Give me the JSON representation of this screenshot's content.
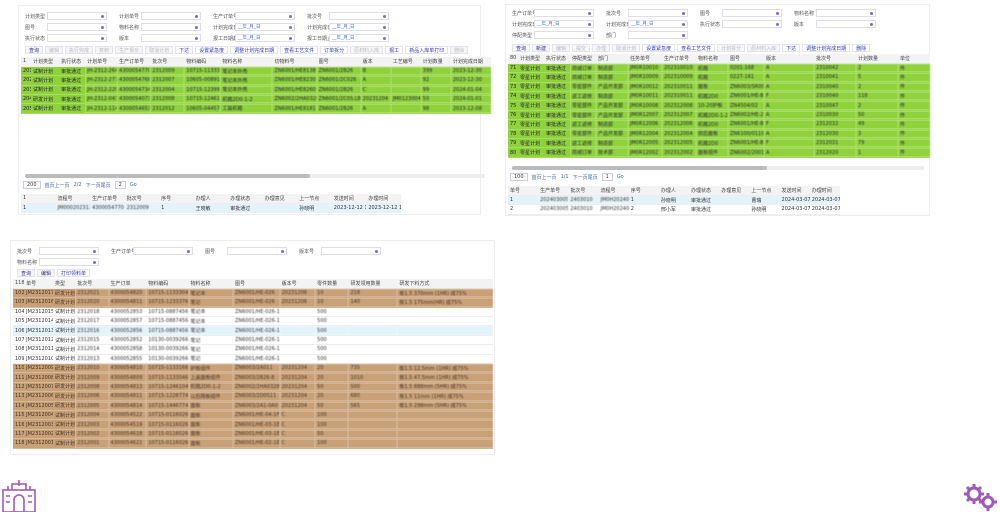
{
  "panelA": {
    "filters": [
      [
        {
          "label": "计划类型",
          "value": ""
        },
        {
          "label": "计划单号",
          "value": ""
        },
        {
          "label": "生产订单号",
          "value": ""
        },
        {
          "label": "批次号",
          "value": ""
        }
      ],
      [
        {
          "label": "图号",
          "value": ""
        },
        {
          "label": "物料名称",
          "value": ""
        },
        {
          "label": "计划完成日期",
          "value": "__年_月_日"
        },
        {
          "label": "计划完成日期",
          "value": "__年_月_日"
        }
      ],
      [
        {
          "label": "执行状态",
          "value": ""
        },
        {
          "label": "版本",
          "value": ""
        },
        {
          "label": "报工日期起",
          "value": "__年_月_日"
        },
        {
          "label": "报工日期止",
          "value": "__年_月_日"
        }
      ]
    ],
    "buttons": [
      {
        "label": "查询",
        "dis": false
      },
      {
        "label": "编辑",
        "dis": true
      },
      {
        "label": "执行完成",
        "dis": true
      },
      {
        "label": "复制",
        "dis": true
      },
      {
        "label": "生产报价",
        "dis": true
      },
      {
        "label": "取消计划",
        "dis": true
      },
      {
        "label": "下达",
        "dis": false,
        "lnk": true
      },
      {
        "label": "设置紧急度",
        "dis": false,
        "lnk": true
      },
      {
        "label": "调整计划完成日期",
        "dis": false,
        "lnk": true
      },
      {
        "label": "查看工艺文件",
        "dis": false,
        "lnk": true
      },
      {
        "label": "订单拆分",
        "dis": false,
        "lnk": true
      },
      {
        "label": "原材料入库",
        "dis": true
      },
      {
        "label": "报工",
        "dis": false,
        "lnk": true
      },
      {
        "label": "新品入库单打印",
        "dis": false,
        "lnk": true
      },
      {
        "label": "删除",
        "dis": true
      }
    ],
    "columns": [
      "1",
      "计划类型",
      "执行状态",
      "计划单号",
      "生产订单号",
      "批次号",
      "物料编码",
      "物料名称",
      "切物料号",
      "图号",
      "版本",
      "工艺编号",
      "计划数量",
      "计划完成日期"
    ],
    "rows": [
      [
        "201",
        "试制计划",
        "审批通过",
        "JH-2312-264",
        "4300054770",
        "2312009",
        "10715-1133304",
        "笔记本外壳",
        "ZN6001/HE8138",
        "ZN6001/2B26",
        "B",
        "",
        "399",
        "2023-12-30"
      ],
      [
        "202",
        "试制计划",
        "审批通过",
        "JH-2312-277",
        "4300054768",
        "2312007",
        "10605-0089166",
        "笔记本外壳",
        "ZN6001/HE8230",
        "ZN6001/2C026",
        "A",
        "",
        "92",
        "2023-12-30"
      ],
      [
        "203",
        "试制计划",
        "审批通过",
        "JH-2312-220",
        "4300054734",
        "2312004",
        "10715-1239906",
        "笔记本外壳",
        "ZN6001/HE8260",
        "ZN6001/2B26",
        "C",
        "",
        "99",
        "2024-01-04"
      ],
      [
        "204",
        "研发计划",
        "审批通过",
        "JH-2312-043",
        "4300054073",
        "2312008",
        "10715-1246104",
        "机箱2D0-1-2",
        "ZN6002/2HA0328",
        "ZN6001/2C0S.LB",
        "20231204",
        "JM0123004",
        "50",
        "2024-01-01"
      ],
      [
        "205",
        "试制计划",
        "审批通过",
        "JH-2312-114",
        "4300054653",
        "2312012",
        "10605-0445724",
        "工装机箱",
        "ZN6001/HE8181",
        "ZN6001/2B26",
        "A",
        "",
        "98",
        "2023-12-08"
      ]
    ],
    "pager": {
      "page_size": "200",
      "first_prev": "首页上一页",
      "page_info": "2/2",
      "next_last": "下一页尾页",
      "page": "2",
      "go": "Go"
    },
    "detail_columns": [
      "1",
      "流程号",
      "生产订单号",
      "批次号",
      "序号",
      "办理人",
      "办理状态",
      "办理意见",
      "上一节点",
      "发送时间",
      "办理时间"
    ],
    "detail_rows": [
      [
        "1",
        "JM0002023121202004",
        "4300054770",
        "2312009",
        "1",
        "王晓敏",
        "审批通过",
        "",
        "孙晓明",
        "2023-12-12 15:09",
        "2023-12-12 16:00"
      ]
    ]
  },
  "panelB": {
    "filters": [
      [
        {
          "label": "生产订单号",
          "value": ""
        },
        {
          "label": "批次号",
          "value": ""
        },
        {
          "label": "图号",
          "value": ""
        },
        {
          "label": "物料名称",
          "value": ""
        }
      ],
      [
        {
          "label": "计划完成日期",
          "value": "__年_月_日"
        },
        {
          "label": "计划完成日期",
          "value": "__年_月_日"
        },
        {
          "label": "执行状态",
          "value": ""
        },
        {
          "label": "版本",
          "value": ""
        }
      ],
      [
        {
          "label": "停配类型",
          "value": ""
        },
        {
          "label": "部门",
          "value": ""
        }
      ]
    ],
    "buttons": [
      {
        "label": "查询",
        "dis": false
      },
      {
        "label": "新建",
        "dis": false
      },
      {
        "label": "编辑",
        "dis": true
      },
      {
        "label": "提交",
        "dis": true
      },
      {
        "label": "办理",
        "dis": true
      },
      {
        "label": "取消计划",
        "dis": true
      },
      {
        "label": "设置紧急度",
        "dis": false,
        "lnk": true
      },
      {
        "label": "查看工艺文件",
        "dis": false,
        "lnk": true
      },
      {
        "label": "计划拆分",
        "dis": true
      },
      {
        "label": "原材料入库",
        "dis": true
      },
      {
        "label": "下达",
        "dis": false,
        "lnk": true
      },
      {
        "label": "调整计划完成日期",
        "dis": false,
        "lnk": true
      },
      {
        "label": "删除",
        "dis": false,
        "lnk": true
      }
    ],
    "columns": [
      "80",
      "计划类型",
      "执行状态",
      "停配类型",
      "部门",
      "任务单号",
      "生产订单号",
      "物料名称",
      "图号",
      "版本",
      "批次号",
      "计划数量",
      "单位"
    ],
    "rows": [
      [
        "71",
        "零星计划",
        "审批通过",
        "商城订单",
        "制造部",
        "JM0R10010",
        "202310010",
        "机箱",
        "0201-168",
        "A",
        "2310042",
        "2",
        "件"
      ],
      [
        "72",
        "零星计划",
        "审批通过",
        "商城订单",
        "制造部",
        "JM0R10009",
        "202310009",
        "机箱",
        "0227-161",
        "A",
        "2310041",
        "5",
        "件"
      ],
      [
        "73",
        "零星计划",
        "审批通过",
        "零星部件",
        "产品开发部",
        "JM0R10012",
        "202310011",
        "面板",
        "ZN6003/SR004",
        "A",
        "2310040",
        "2",
        "件"
      ],
      [
        "74",
        "零星计划",
        "审批通过",
        "返工返修",
        "制造部",
        "JM0R10011",
        "202310011",
        "机箱2D0",
        "ZN6001/HE-BLB",
        "F",
        "2310040",
        "118",
        "件"
      ],
      [
        "75",
        "零星计划",
        "审批通过",
        "零星部件",
        "产品开发部",
        "JM0R10008",
        "202312008",
        "10-20护板",
        "ZN4504/02",
        "A",
        "2310047",
        "2",
        "件"
      ],
      [
        "76",
        "零星计划",
        "审批通过",
        "零星部件",
        "产品开发部",
        "JM0R12007",
        "202312007",
        "机箱2D0-1-2",
        "ZN6002/HE-26",
        "A",
        "2310030",
        "50",
        "件"
      ],
      [
        "77",
        "零星计划",
        "审批通过",
        "返工返修",
        "制造部",
        "JM0R12006",
        "202312006",
        "机箱2D0",
        "ZN6001/HE-BLB",
        "F",
        "2312032",
        "49",
        "件"
      ],
      [
        "78",
        "零星计划",
        "审批通过",
        "零星部件",
        "产品开发部",
        "JM0R12004",
        "202312004",
        "前后面板",
        "ZN6100/01100",
        "A",
        "2312030",
        "3",
        "件"
      ],
      [
        "79",
        "零星计划",
        "审批通过",
        "返工返修",
        "制造部",
        "JM0R12005",
        "202312005",
        "机箱2D0",
        "ZN6001/HE-BLB",
        "F",
        "2312031",
        "79",
        "件"
      ],
      [
        "80",
        "零星计划",
        "审批通过",
        "商城订单",
        "技术部",
        "JM0R12002",
        "202312002",
        "面板组件",
        "ZN6002/2001",
        "A",
        "2312020",
        "1",
        "件"
      ]
    ],
    "pager": {
      "page_size": "100",
      "first_prev": "首页上一页",
      "page_info": "1/1",
      "next_last": "下一页尾页",
      "page": "1",
      "go": "Go"
    },
    "detail_columns": [
      "单号",
      "生产单号",
      "批次号",
      "流程号",
      "序号",
      "办理人",
      "办理状态",
      "办理意见",
      "上一节点",
      "发送时间",
      "办理时间"
    ],
    "detail_rows": [
      [
        "1",
        "202403005",
        "2403010",
        "JM0H2024030700002",
        "1",
        "孙晓明",
        "审批通过",
        "",
        "曹瑞",
        "2024-03-07 13:56",
        "2024-03-07 14:02"
      ],
      [
        "2",
        "202403005",
        "2403010",
        "JM0H2024030700002",
        "2",
        "邢小军",
        "审批通过",
        "",
        "孙晓明",
        "2024-03-07 14:02",
        "2024-03-07 14:03"
      ]
    ]
  },
  "panelC": {
    "filters": [
      [
        {
          "label": "批次号",
          "value": ""
        },
        {
          "label": "生产订单号",
          "value": ""
        },
        {
          "label": "图号",
          "value": ""
        },
        {
          "label": "版本号",
          "value": ""
        }
      ],
      [
        {
          "label": "物料名称",
          "value": ""
        }
      ]
    ],
    "buttons": [
      {
        "label": "查询",
        "dis": false
      },
      {
        "label": "编辑",
        "dis": false
      },
      {
        "label": "打印领料单",
        "dis": false,
        "lnk": true
      }
    ],
    "columns": [
      "118",
      "单号",
      "类型",
      "批次号",
      "生产订单",
      "物料编码",
      "物料名称",
      "图号",
      "版本号",
      "零件数量",
      "研发领用数量",
      "研发下料方式"
    ],
    "rows": [
      [
        "102",
        "JM2312017",
        "研发计划",
        "2312021",
        "4300054820",
        "10715-1133304",
        "笔记本",
        "ZN6001/HE-026",
        "20231206",
        "10",
        "218",
        "板1.5 370mm (1HR) 成75%"
      ],
      [
        "103",
        "JM2312016",
        "研发计划",
        "2312020",
        "4300054811",
        "10715-1233376",
        "笔记",
        "ZN6001/HE-026",
        "20231206",
        "10",
        "140",
        "板1.5 175mm(HR) 成75%"
      ],
      [
        "104",
        "JM2312015",
        "试制计划",
        "2312018",
        "4300052853",
        "10715-0887456",
        "笔记本",
        "ZN6001/HE-026-1-2",
        "",
        "500",
        "",
        ""
      ],
      [
        "105",
        "JM2312014",
        "试制计划",
        "2312017",
        "4300052857",
        "10715-0887456",
        "笔记本",
        "ZN6001/HE-026-1-2",
        "",
        "500",
        "",
        ""
      ],
      [
        "106",
        "JM2312013",
        "试制计划",
        "2312016",
        "4300052856",
        "10715-0887456",
        "笔记本",
        "ZN6001/HE-026-1-2",
        "",
        "500",
        "",
        ""
      ],
      [
        "107",
        "JM2312012",
        "试制计划",
        "2312015",
        "4300052852",
        "10130-0039266",
        "笔记",
        "ZN6001/HE-026-1-8",
        "",
        "500",
        "",
        ""
      ],
      [
        "108",
        "JM2312011",
        "试制计划",
        "2312014",
        "4300052858",
        "10130-0039266",
        "笔记",
        "ZN6001/HE-026-1-8",
        "",
        "500",
        "",
        ""
      ],
      [
        "109",
        "JM2312010",
        "试制计划",
        "2312013",
        "4300052855",
        "10130-0039266",
        "笔记",
        "ZN6001/HE-026-1-8",
        "",
        "500",
        "",
        ""
      ],
      [
        "110",
        "JM2312009",
        "研发计划",
        "2312010",
        "4300054810",
        "10715-1133166",
        "护板组件",
        "ZN6003/2A011",
        "20231204",
        "20",
        "735",
        "板1.5 12.5mm (1HR) 成75%"
      ],
      [
        "111",
        "JM2312008",
        "研发计划",
        "2312009",
        "4300054809",
        "10715-1133046",
        "上盖面板组件",
        "ZN6003/2B26-8",
        "20231204",
        "20",
        "1010",
        "板1.5 47.5mm (1HR) 成75%"
      ],
      [
        "112",
        "JM2312007",
        "研发计划",
        "2312008",
        "4300054813",
        "10715-1246104",
        "机箱2D0-1-2",
        "ZN6002/2HA0328",
        "20231204",
        "50",
        "500",
        "板1.5 888mm (5HR) 成75%"
      ],
      [
        "113",
        "JM2312006",
        "研发计划",
        "2312006",
        "4300054811",
        "10715-1228774",
        "以后隔板组件",
        "ZN6003/2D0S11",
        "20231204",
        "20",
        "680",
        "板1.5 11mm (1HR) 成75%"
      ],
      [
        "114",
        "JM2312005",
        "研发计划",
        "2312005",
        "4300054814",
        "10715-1446774",
        "面板",
        "ZN6003/2A1-0A0",
        "20231204",
        "50",
        "565",
        "板1.5 298mm (5HR) 成75%"
      ],
      [
        "115",
        "JM2312004",
        "试制计划",
        "2312004",
        "4300054522",
        "10715-0116026",
        "面板",
        "ZN6001/HE-04-1F",
        "C",
        "100",
        "",
        ""
      ],
      [
        "116",
        "JM2312003",
        "试制计划",
        "2312003",
        "4300054519",
        "10715-0116026",
        "面板",
        "ZN6001/HE-03-1E",
        "C",
        "100",
        "",
        ""
      ],
      [
        "117",
        "JM2312002",
        "试制计划",
        "2312002",
        "4300054618",
        "10715-0116026",
        "面板",
        "ZN6001/HE-03-1E",
        "C",
        "50",
        "",
        ""
      ],
      [
        "118",
        "JM2312001",
        "试制计划",
        "2312001",
        "4300054621",
        "10715-0116026",
        "面板",
        "ZN6001/HE-02-1E",
        "C",
        "100",
        "",
        ""
      ]
    ],
    "row_styles": [
      "tan",
      "tan",
      "",
      "",
      "sel",
      "",
      "",
      "",
      "tan",
      "tan",
      "tan",
      "tan",
      "tan",
      "tan",
      "tan",
      "tan",
      "tan"
    ]
  },
  "colors": {
    "green": "#8fd23c",
    "tan": "#c9a179",
    "accent": "#7a6bd6",
    "logo": "#a05ab4"
  },
  "icons": {
    "logo": "building-logo-icon",
    "bottom_right": "gears-icon"
  }
}
